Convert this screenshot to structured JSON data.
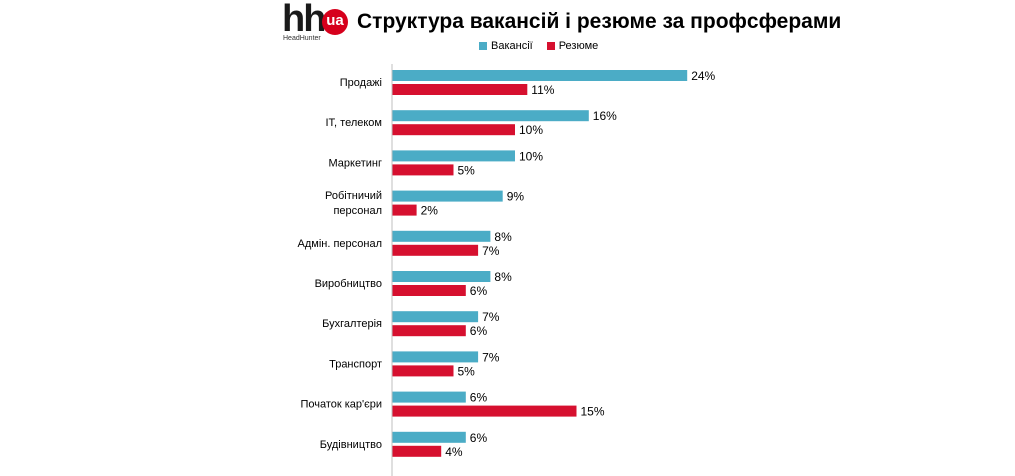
{
  "logo": {
    "mark": "hh",
    "badge": "ua",
    "subtitle": "HeadHunter"
  },
  "chart_data": {
    "type": "bar",
    "orientation": "horizontal",
    "title": "Структура вакансій і резюме за профсферами",
    "categories": [
      "Продажі",
      "IT, телеком",
      "Маркетинг",
      "Робітничий персонал",
      "Адмін. персонал",
      "Виробництво",
      "Бухгалтерія",
      "Транспорт",
      "Початок кар'єри",
      "Будівництво"
    ],
    "category_lines": [
      [
        "Продажі"
      ],
      [
        "IT, телеком"
      ],
      [
        "Маркетинг"
      ],
      [
        "Робітничий",
        "персонал"
      ],
      [
        "Адмін. персонал"
      ],
      [
        "Виробництво"
      ],
      [
        "Бухгалтерія"
      ],
      [
        "Транспорт"
      ],
      [
        "Початок кар'єри"
      ],
      [
        "Будівництво"
      ]
    ],
    "series": [
      {
        "name": "Вакансії",
        "color": "#4bacc6",
        "values": [
          24,
          16,
          10,
          9,
          8,
          8,
          7,
          7,
          6,
          6
        ]
      },
      {
        "name": "Резюме",
        "color": "#d6102f",
        "values": [
          11,
          10,
          5,
          2,
          7,
          6,
          6,
          5,
          15,
          4
        ]
      }
    ],
    "value_suffix": "%",
    "legend": "top-center",
    "grid": false
  }
}
